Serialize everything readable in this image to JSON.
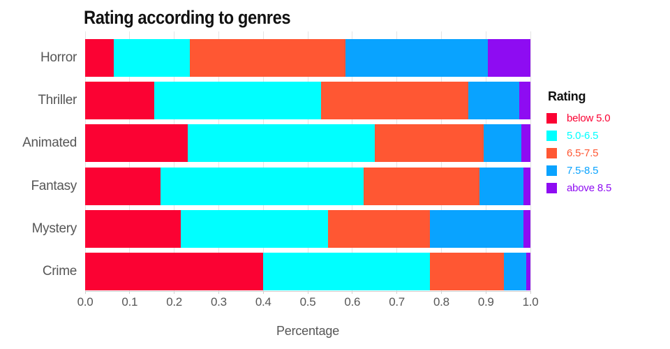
{
  "chart_data": {
    "type": "bar",
    "orientation": "horizontal",
    "stacked": true,
    "title": "Rating according to genres",
    "xlabel": "Percentage",
    "ylabel": "",
    "xlim": [
      0,
      1
    ],
    "grid": true,
    "legend_position": "right",
    "legend_title": "Rating",
    "x_ticks": [
      "0.0",
      "0.1",
      "0.2",
      "0.3",
      "0.4",
      "0.5",
      "0.6",
      "0.7",
      "0.8",
      "0.9",
      "1.0"
    ],
    "categories": [
      "Horror",
      "Thriller",
      "Animated",
      "Fantasy",
      "Mystery",
      "Crime"
    ],
    "series": [
      {
        "name": "below 5.0",
        "color": "#fb0233",
        "values": [
          0.065,
          0.155,
          0.23,
          0.17,
          0.215,
          0.4
        ]
      },
      {
        "name": "5.0-6.5",
        "color": "#00ffff",
        "values": [
          0.17,
          0.375,
          0.42,
          0.455,
          0.33,
          0.375
        ]
      },
      {
        "name": "6.5-7.5",
        "color": "#ff5733",
        "values": [
          0.35,
          0.33,
          0.245,
          0.26,
          0.23,
          0.165
        ]
      },
      {
        "name": "7.5-8.5",
        "color": "#09a3ff",
        "values": [
          0.32,
          0.115,
          0.085,
          0.1,
          0.21,
          0.05
        ]
      },
      {
        "name": "above 8.5",
        "color": "#8e0cf2",
        "values": [
          0.095,
          0.025,
          0.02,
          0.015,
          0.015,
          0.01
        ]
      }
    ]
  }
}
